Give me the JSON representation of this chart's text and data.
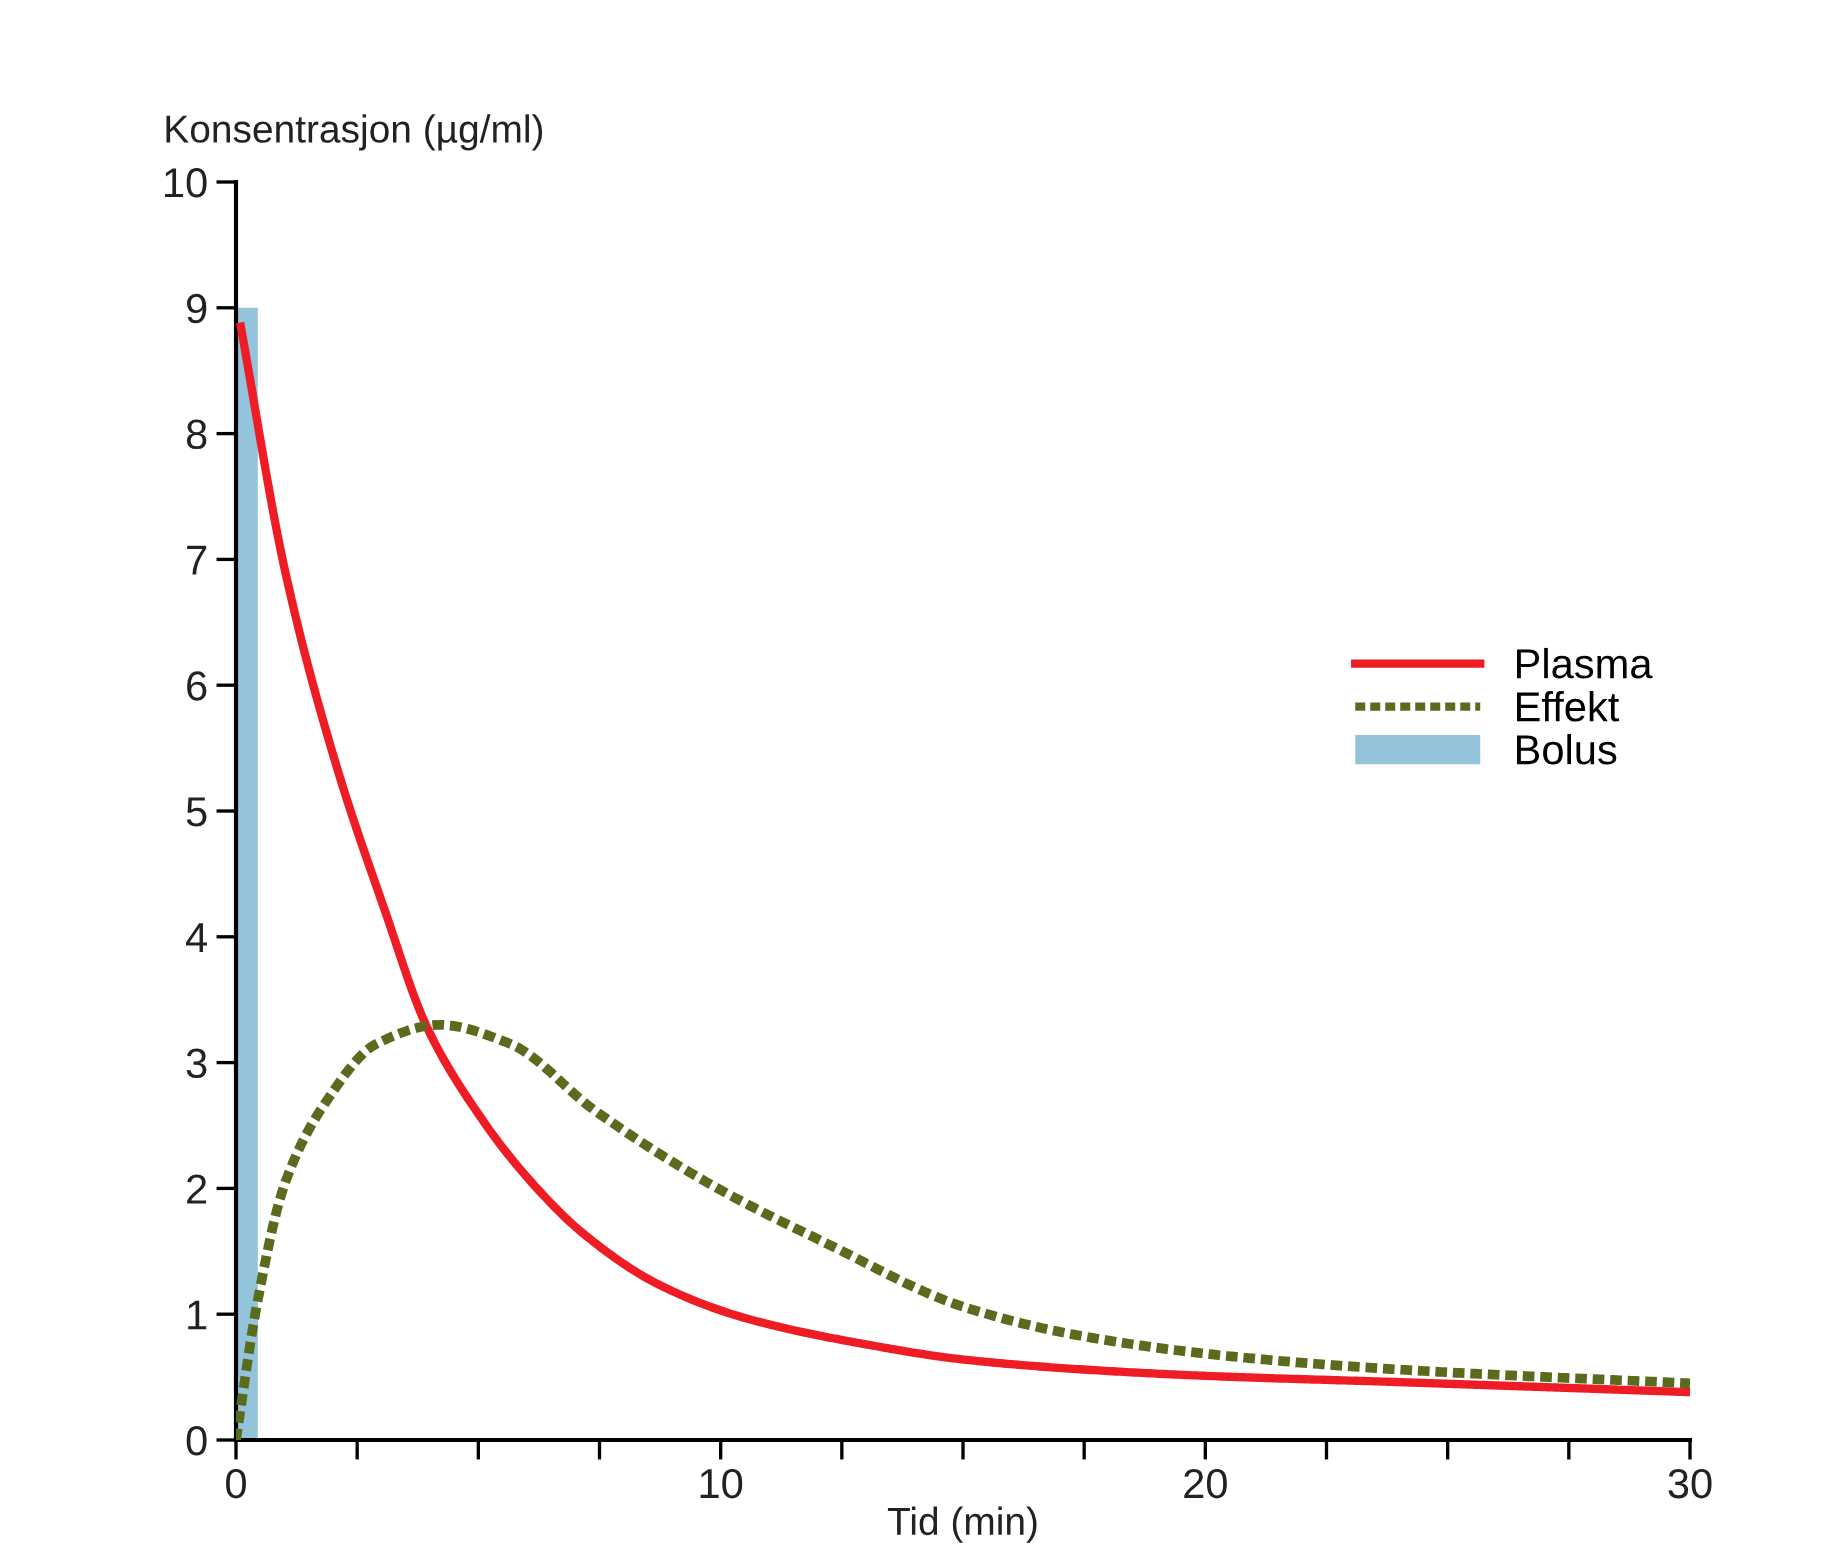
{
  "chart_data": {
    "type": "line",
    "xlabel": "Tid (min)",
    "ylabel": "Konsentrasjon (µg/ml)",
    "xlim": [
      0,
      30
    ],
    "ylim": [
      0,
      10
    ],
    "xticks": [
      0,
      {
        "value": 2.5,
        "label": null
      },
      {
        "value": 5,
        "label": null
      },
      {
        "value": 7.5,
        "label": null
      },
      10,
      {
        "value": 12.5,
        "label": null
      },
      {
        "value": 15,
        "label": null
      },
      {
        "value": 17.5,
        "label": null
      },
      20,
      {
        "value": 22.5,
        "label": null
      },
      {
        "value": 25,
        "label": null
      },
      {
        "value": 27.5,
        "label": null
      },
      30
    ],
    "yticks": [
      0,
      1,
      2,
      3,
      4,
      5,
      6,
      7,
      8,
      9,
      10
    ],
    "grid": false,
    "legend": "right",
    "marker": "none",
    "series": [
      {
        "name": "Plasma",
        "color": "#ee1c25",
        "line_style": "solid",
        "x": [
          0.1,
          1.0,
          2.04,
          3.07,
          3.93,
          4.95,
          5.98,
          7.2,
          8.75,
          10.5,
          13.0,
          15.0,
          17.5,
          20.0,
          24.0,
          30.0
        ],
        "values": [
          8.85,
          6.93,
          5.4,
          4.21,
          3.29,
          2.62,
          2.1,
          1.63,
          1.23,
          0.97,
          0.76,
          0.64,
          0.56,
          0.51,
          0.46,
          0.38
        ]
      },
      {
        "name": "Effekt",
        "color": "#5b6b1e",
        "line_style": "dotted",
        "x": [
          0,
          0.41,
          1.0,
          1.86,
          2.9,
          4.2,
          5.65,
          7.4,
          9.8,
          12.2,
          15.0,
          17.4,
          20.4,
          24.0,
          30.0
        ],
        "values": [
          0.0,
          1.03,
          2.03,
          2.69,
          3.15,
          3.3,
          3.15,
          2.62,
          2.03,
          1.56,
          1.06,
          0.83,
          0.67,
          0.56,
          0.45
        ]
      },
      {
        "name": "Bolus",
        "type": "bar",
        "color": "#93c4dc",
        "x": [
          0.225
        ],
        "values": [
          9
        ]
      }
    ]
  }
}
